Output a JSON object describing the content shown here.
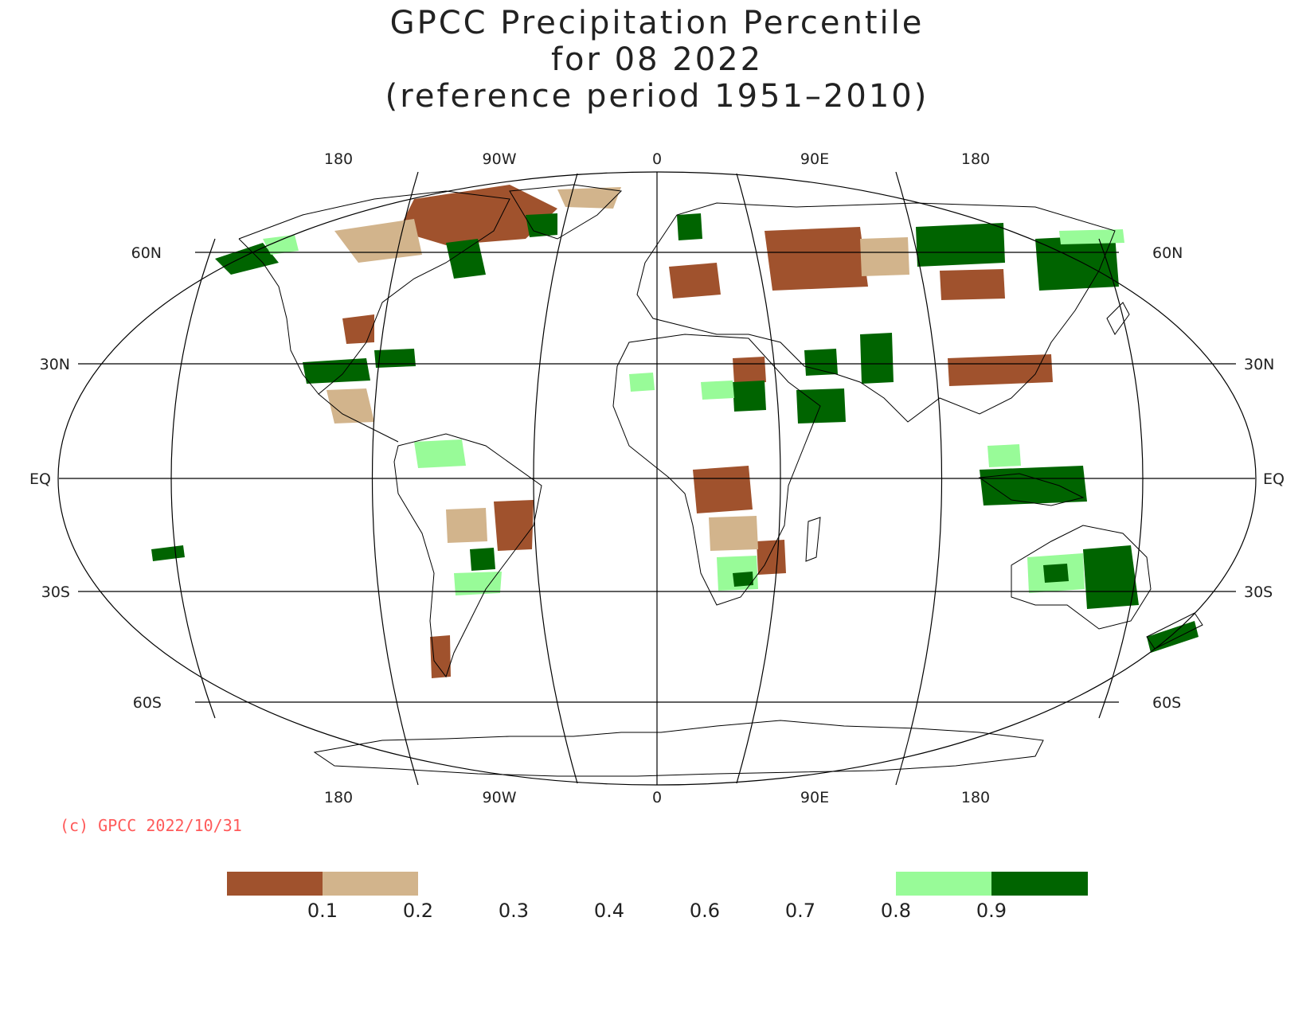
{
  "title": {
    "line1": "GPCC Precipitation Percentile",
    "line2": "for 08 2022",
    "line3": "(reference period 1951–2010)"
  },
  "map": {
    "projection": "Robinson",
    "top_lon_labels": [
      "180",
      "90W",
      "0",
      "90E",
      "180"
    ],
    "bottom_lon_labels": [
      "180",
      "90W",
      "0",
      "90E",
      "180"
    ],
    "left_lat_labels": [
      "60N",
      "30N",
      "EQ",
      "30S",
      "60S"
    ],
    "right_lat_labels": [
      "60N",
      "30N",
      "EQ",
      "30S",
      "60S"
    ]
  },
  "copyright": "(c) GPCC 2022/10/31",
  "legend": {
    "colors": {
      "lt_0_1": "#a0522d",
      "0_1_to_0_2": "#d2b48c",
      "0_8_to_0_9": "#98fb98",
      "gt_0_9": "#006400"
    },
    "ticks": [
      "0.1",
      "0.2",
      "0.3",
      "0.4",
      "0.6",
      "0.7",
      "0.8",
      "0.9"
    ]
  }
}
